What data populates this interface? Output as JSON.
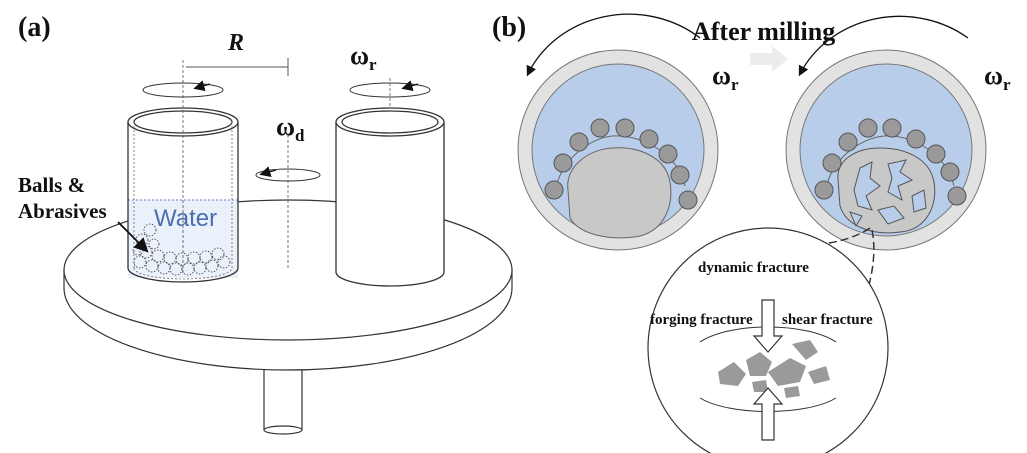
{
  "panel_a": {
    "label": "(a)",
    "radius_symbol": "R",
    "omega_r_base": "ω",
    "omega_r_sub": "r",
    "omega_d_base": "ω",
    "omega_d_sub": "d",
    "balls_label_line1": "Balls &",
    "balls_label_line2": "Abrasives",
    "water_label": "Water"
  },
  "panel_b": {
    "label": "(b)",
    "after_milling": "After milling",
    "omega_left_base": "ω",
    "omega_left_sub": "r",
    "omega_right_base": "ω",
    "omega_right_sub": "r",
    "dynamic_fracture": "dynamic fracture",
    "forging_fracture": "forging fracture",
    "shear_fracture": "shear fracture"
  },
  "colors": {
    "water_blue": "#b8cdea",
    "jar_wall_gray": "#e2e2e2",
    "ball_gray": "#9a9a9a",
    "particle_gray": "#c8c8c8",
    "line": "#333333"
  }
}
